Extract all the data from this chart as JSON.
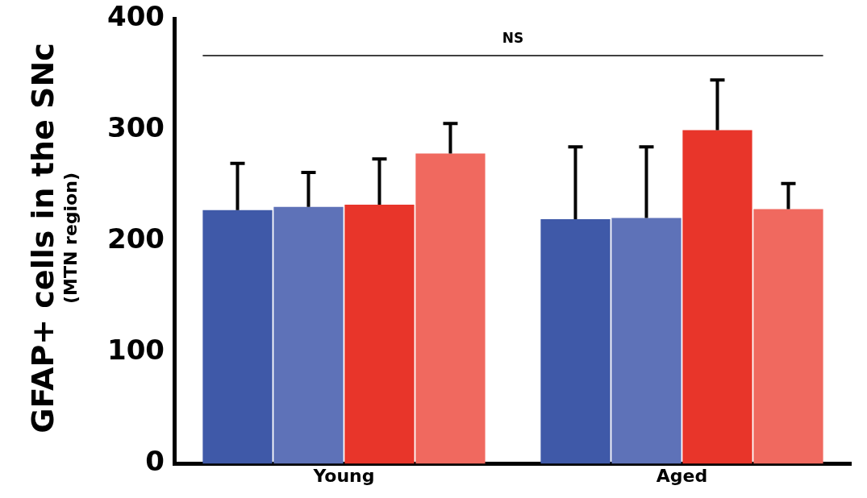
{
  "chart_data": {
    "type": "bar",
    "ylabel": "GFAP+ cells in the SNc",
    "subtitle": "(MTN region)",
    "categories": [
      "Young",
      "Aged"
    ],
    "series": [
      {
        "color": "#3f59a8",
        "values": [
          228,
          220
        ],
        "errors": [
          [
            228,
            270
          ],
          [
            220,
            285
          ]
        ]
      },
      {
        "color": "#5e72b8",
        "values": [
          231,
          221
        ],
        "errors": [
          [
            231,
            262
          ],
          [
            221,
            285
          ]
        ]
      },
      {
        "color": "#e8352a",
        "values": [
          233,
          300
        ],
        "errors": [
          [
            233,
            274
          ],
          [
            300,
            345
          ]
        ]
      },
      {
        "color": "#f0695f",
        "values": [
          279,
          229
        ],
        "errors": [
          [
            279,
            306
          ],
          [
            229,
            252
          ]
        ]
      }
    ],
    "ylim": [
      0,
      400
    ],
    "yticks": [
      0,
      100,
      200,
      300,
      400
    ],
    "grid": false,
    "legend": false,
    "ref_lines": [
      {
        "axis": "y",
        "value": 367,
        "label": "NS",
        "color": "#000000"
      }
    ]
  }
}
